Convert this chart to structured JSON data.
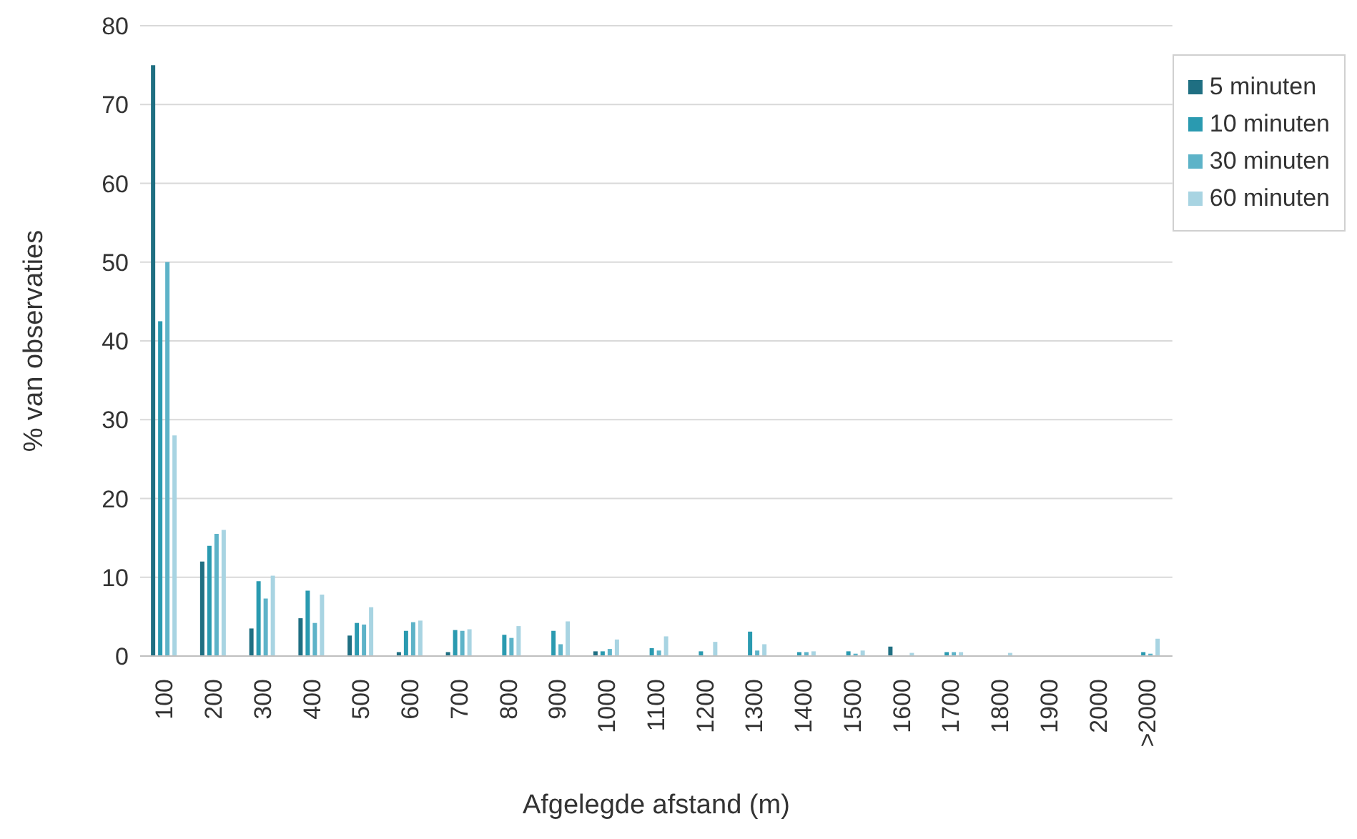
{
  "chart_data": {
    "type": "bar",
    "xlabel": "Afgelegde afstand (m)",
    "ylabel": "% van observaties",
    "categories": [
      "100",
      "200",
      "300",
      "400",
      "500",
      "600",
      "700",
      "800",
      "900",
      "1000",
      "1100",
      "1200",
      "1300",
      "1400",
      "1500",
      "1600",
      "1700",
      "1800",
      "1900",
      "2000",
      ">2000"
    ],
    "series": [
      {
        "name": "5 minuten",
        "color": "#1f6f82",
        "values": [
          75,
          12,
          3.5,
          4.8,
          2.6,
          0.5,
          0.5,
          0,
          0,
          0.6,
          0,
          0,
          0,
          0,
          0,
          1.2,
          0,
          0,
          0,
          0,
          0
        ]
      },
      {
        "name": "10 minuten",
        "color": "#2a9ab0",
        "values": [
          42.5,
          14,
          9.5,
          8.3,
          4.2,
          3.2,
          3.3,
          2.7,
          3.2,
          0.6,
          1,
          0.6,
          3.1,
          0.5,
          0.6,
          0,
          0.5,
          0,
          0,
          0,
          0.5
        ]
      },
      {
        "name": "30 minuten",
        "color": "#5db3c8",
        "values": [
          50,
          15.5,
          7.3,
          4.2,
          4,
          4.3,
          3.2,
          2.3,
          1.5,
          0.9,
          0.7,
          0,
          0.7,
          0.5,
          0.3,
          0,
          0.5,
          0,
          0,
          0,
          0.3
        ]
      },
      {
        "name": "60 minuten",
        "color": "#a8d4e2",
        "values": [
          28,
          16,
          10.2,
          7.8,
          6.2,
          4.5,
          3.4,
          3.8,
          4.4,
          2.1,
          2.5,
          1.8,
          1.5,
          0.6,
          0.7,
          0.4,
          0.5,
          0.4,
          0,
          0,
          2.2
        ]
      }
    ],
    "ylim": [
      0,
      80
    ],
    "yticks": [
      0,
      10,
      20,
      30,
      40,
      50,
      60,
      70,
      80
    ],
    "grid": "y",
    "legend": "top right"
  }
}
